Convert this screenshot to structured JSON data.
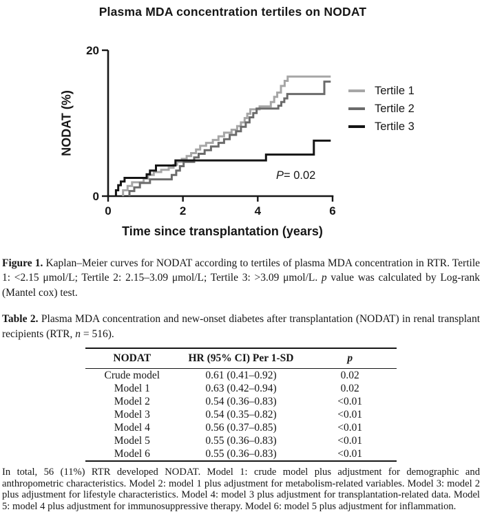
{
  "title": "Plasma MDA concentration tertiles on NODAT",
  "chart_data": {
    "type": "line",
    "subtype": "kaplan-meier-step",
    "title": "Plasma MDA concentration tertiles on NODAT",
    "xlabel": "Time since transplantation (years)",
    "ylabel": "NODAT (%)",
    "xlim": [
      0,
      6
    ],
    "ylim": [
      0,
      20
    ],
    "xticks": [
      0,
      2,
      4,
      6
    ],
    "yticks": [
      0,
      20
    ],
    "grid": false,
    "legend_position": "right",
    "annotation": {
      "italic": "P",
      "rest": "= 0.02"
    },
    "axis_color": "#161616",
    "series": [
      {
        "name": "Tertile 1",
        "color": "#a6a6a6",
        "steps": [
          [
            0.4,
            0
          ],
          [
            0.4,
            0.8
          ],
          [
            0.52,
            1.4
          ],
          [
            0.64,
            1.9
          ],
          [
            0.95,
            2.4
          ],
          [
            1.07,
            2.9
          ],
          [
            1.22,
            3.3
          ],
          [
            1.42,
            3.6
          ],
          [
            1.62,
            3.9
          ],
          [
            1.75,
            4.3
          ],
          [
            1.84,
            4.7
          ],
          [
            1.97,
            5.1
          ],
          [
            2.1,
            5.5
          ],
          [
            2.22,
            5.9
          ],
          [
            2.35,
            6.4
          ],
          [
            2.46,
            6.9
          ],
          [
            2.62,
            7.3
          ],
          [
            2.8,
            7.7
          ],
          [
            2.95,
            8.2
          ],
          [
            3.1,
            8.7
          ],
          [
            3.3,
            9.1
          ],
          [
            3.45,
            9.6
          ],
          [
            3.55,
            10.1
          ],
          [
            3.65,
            10.7
          ],
          [
            3.72,
            11.3
          ],
          [
            3.8,
            11.9
          ],
          [
            4.05,
            12.3
          ],
          [
            4.35,
            12.9
          ],
          [
            4.44,
            13.6
          ],
          [
            4.52,
            14.2
          ],
          [
            4.62,
            15.1
          ],
          [
            4.72,
            15.8
          ],
          [
            4.8,
            16.4
          ],
          [
            5.95,
            16.4
          ]
        ]
      },
      {
        "name": "Tertile 2",
        "color": "#6b6b6b",
        "steps": [
          [
            0.57,
            0
          ],
          [
            0.57,
            0.7
          ],
          [
            0.7,
            1.2
          ],
          [
            0.85,
            1.8
          ],
          [
            1.12,
            2.3
          ],
          [
            1.7,
            2.9
          ],
          [
            1.82,
            3.5
          ],
          [
            1.92,
            4.1
          ],
          [
            2.02,
            4.7
          ],
          [
            2.3,
            5.3
          ],
          [
            2.42,
            5.8
          ],
          [
            2.58,
            6.3
          ],
          [
            2.75,
            6.8
          ],
          [
            2.95,
            7.3
          ],
          [
            3.1,
            7.8
          ],
          [
            3.25,
            8.4
          ],
          [
            3.42,
            8.9
          ],
          [
            3.55,
            9.5
          ],
          [
            3.68,
            10.1
          ],
          [
            3.78,
            10.8
          ],
          [
            3.88,
            11.4
          ],
          [
            3.97,
            12.0
          ],
          [
            4.55,
            12.4
          ],
          [
            4.63,
            12.9
          ],
          [
            4.71,
            13.4
          ],
          [
            4.79,
            14.0
          ],
          [
            5.78,
            15.7
          ],
          [
            5.95,
            15.7
          ]
        ]
      },
      {
        "name": "Tertile 3",
        "color": "#141414",
        "steps": [
          [
            0.21,
            0
          ],
          [
            0.21,
            0.8
          ],
          [
            0.27,
            1.5
          ],
          [
            0.34,
            2.0
          ],
          [
            0.44,
            2.5
          ],
          [
            1.03,
            3.0
          ],
          [
            1.12,
            3.5
          ],
          [
            1.28,
            4.2
          ],
          [
            1.8,
            4.9
          ],
          [
            4.22,
            5.7
          ],
          [
            5.5,
            7.6
          ],
          [
            5.95,
            7.6
          ]
        ]
      }
    ]
  },
  "figure_caption": {
    "parts": [
      {
        "t": "Figure 1.",
        "b": true
      },
      {
        "t": " Kaplan–Meier curves for NODAT according to tertiles of plasma MDA concentration in RTR. Tertile 1: <2.15 μmol/L; Tertile 2: 2.15–3.09 μmol/L; Tertile 3: >3.09 μmol/L. "
      },
      {
        "t": "p",
        "i": true
      },
      {
        "t": " value was calculated by Log-rank (Mantel cox) test."
      }
    ]
  },
  "table_caption": {
    "parts": [
      {
        "t": "Table 2.",
        "b": true
      },
      {
        "t": " Plasma MDA concentration and new-onset diabetes after transplantation (NODAT) in renal transplant recipients (RTR, "
      },
      {
        "t": "n",
        "i": true
      },
      {
        "t": " = 516)."
      }
    ]
  },
  "table": {
    "headers": [
      {
        "t": "NODAT"
      },
      {
        "t": "HR (95% CI) Per 1-SD"
      },
      {
        "t": "p",
        "i": true
      }
    ],
    "rows": [
      [
        "Crude model",
        "0.61 (0.41–0.92)",
        "0.02"
      ],
      [
        "Model 1",
        "0.63 (0.42–0.94)",
        "0.02"
      ],
      [
        "Model 2",
        "0.54 (0.36–0.83)",
        "<0.01"
      ],
      [
        "Model 3",
        "0.54 (0.35–0.82)",
        "<0.01"
      ],
      [
        "Model 4",
        "0.56 (0.37–0.85)",
        "<0.01"
      ],
      [
        "Model 5",
        "0.55 (0.36–0.83)",
        "<0.01"
      ],
      [
        "Model 6",
        "0.55 (0.36–0.83)",
        "<0.01"
      ]
    ]
  },
  "footnote": "In total, 56 (11%) RTR developed NODAT. Model 1: crude model plus adjustment for demographic and anthropometric characteristics. Model 2: model 1 plus adjustment for metabolism-related variables. Model 3: model 2 plus adjustment for lifestyle characteristics. Model 4: model 3 plus adjustment for transplantation-related data. Model 5: model 4 plus adjustment for immunosuppressive therapy. Model 6: model 5 plus adjustment for inflammation."
}
